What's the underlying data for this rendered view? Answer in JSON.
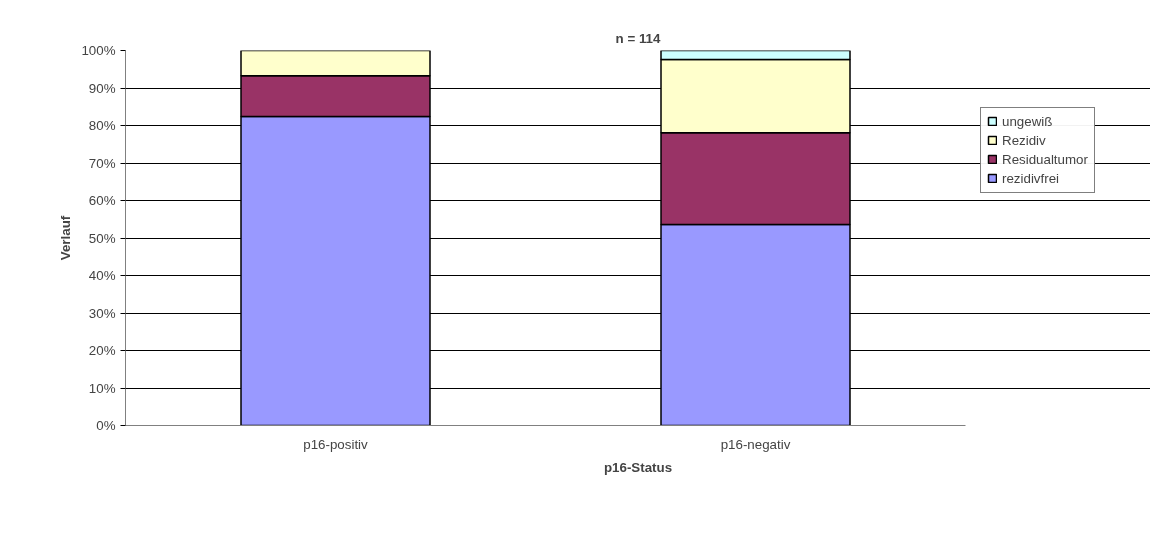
{
  "chart_data": {
    "type": "bar",
    "stacked": true,
    "title": "n = 114",
    "xlabel": "p16-Status",
    "ylabel": "Verlauf",
    "categories": [
      "p16-positiv",
      "p16-negativ"
    ],
    "series": [
      {
        "name": "rezidivfrei",
        "color": "#9999ff",
        "values": [
          82.4,
          53.6
        ]
      },
      {
        "name": "Residualtumor",
        "color": "#993366",
        "values": [
          10.9,
          24.5
        ]
      },
      {
        "name": "Rezidiv",
        "color": "#ffffcc",
        "values": [
          6.7,
          19.5
        ]
      },
      {
        "name": "ungewiß",
        "color": "#ccffff",
        "values": [
          0,
          2.4
        ]
      }
    ],
    "ylim": [
      0,
      100
    ],
    "yticks": [
      {
        "value": 0,
        "label": "0%"
      },
      {
        "value": 10,
        "label": "10%"
      },
      {
        "value": 20,
        "label": "20%"
      },
      {
        "value": 30,
        "label": "30%"
      },
      {
        "value": 40,
        "label": "40%"
      },
      {
        "value": 50,
        "label": "50%"
      },
      {
        "value": 60,
        "label": "60%"
      },
      {
        "value": 70,
        "label": "70%"
      },
      {
        "value": 80,
        "label": "80%"
      },
      {
        "value": 90,
        "label": "90%"
      },
      {
        "value": 100,
        "label": "100%"
      }
    ],
    "grid": "y",
    "legend": "right"
  }
}
